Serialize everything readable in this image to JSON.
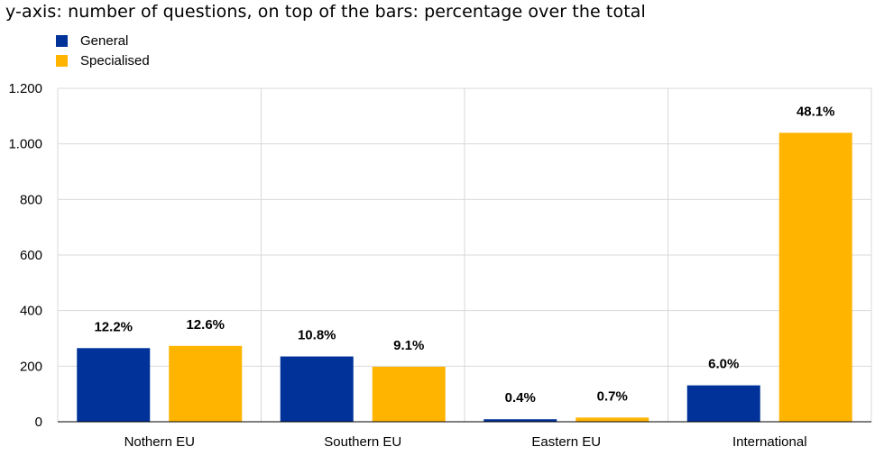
{
  "chart_data": {
    "type": "bar",
    "subtitle": "y-axis: number of questions, on top of the bars: percentage over the total",
    "categories": [
      "Nothern EU",
      "Southern EU",
      "Eastern EU",
      "International"
    ],
    "series": [
      {
        "name": "General",
        "color": "#003299",
        "values": [
          265,
          235,
          9,
          131
        ],
        "labels": [
          "12.2%",
          "10.8%",
          "0.4%",
          "6.0%"
        ]
      },
      {
        "name": "Specialised",
        "color": "#FFB400",
        "values": [
          273,
          198,
          15,
          1040
        ],
        "labels": [
          "12.6%",
          "9.1%",
          "0.7%",
          "48.1%"
        ]
      }
    ],
    "ylim": [
      0,
      1200
    ],
    "yticks": [
      0,
      200,
      400,
      600,
      800,
      1000,
      1200
    ],
    "ytick_labels": [
      "0",
      "200",
      "400",
      "600",
      "800",
      "1.000",
      "1.200"
    ],
    "grid": true,
    "legend_position": "top-left"
  }
}
